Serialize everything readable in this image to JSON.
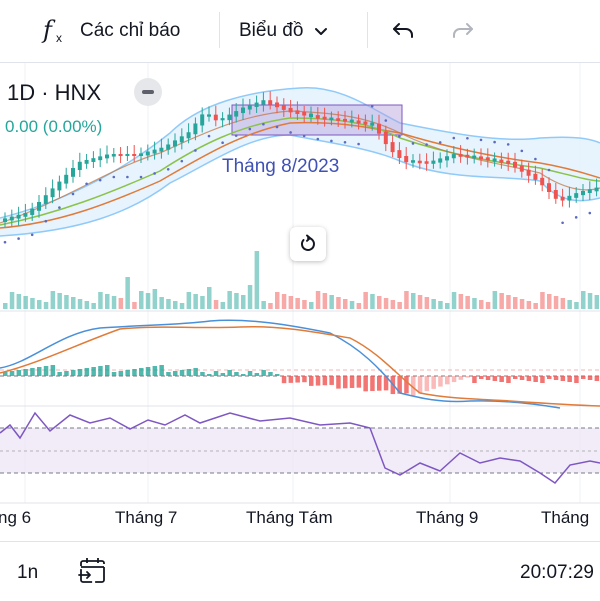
{
  "toolbar": {
    "fx_glyph": "f",
    "fx_sub": "x",
    "indicators_label": "Các chỉ báo",
    "chart_type_label": "Biểu đồ",
    "undo_icon": "undo-icon",
    "redo_icon": "redo-icon"
  },
  "legend": {
    "symbol": "1D · HNX",
    "change": "0.00 (0.00%)"
  },
  "annotation": {
    "text": "Tháng 8/2023"
  },
  "xaxis": {
    "labels": [
      "ng 6",
      "Tháng 7",
      "Tháng Tám",
      "Tháng 9",
      "Tháng"
    ]
  },
  "bottom": {
    "interval": "1n",
    "time": "20:07:29"
  },
  "colors": {
    "up": "#26a69a",
    "down": "#ef5350",
    "bollinger": "#90caf9",
    "ma_fast": "#e07b39",
    "ma_mid": "#8bc34a",
    "rsi": "#7e57c2",
    "macd": "#4a90d9",
    "signal": "#e07b39",
    "annotation": "#3f51b5"
  }
}
